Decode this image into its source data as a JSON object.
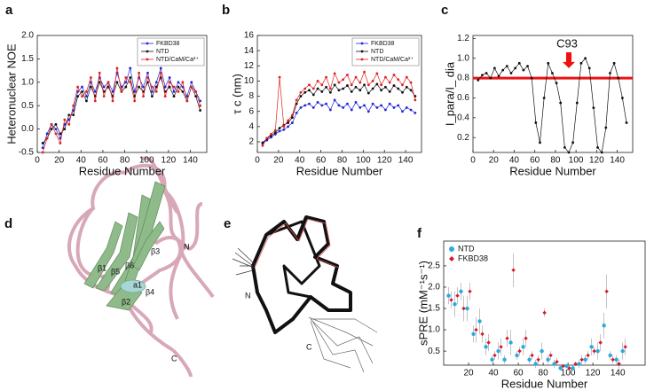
{
  "chart_data": [
    {
      "type": "line",
      "panel": "a",
      "xlabel": "Residue Number",
      "ylabel": "Heteronuclear NOE",
      "xlim": [
        0,
        155
      ],
      "xticks": [
        0,
        20,
        40,
        60,
        80,
        100,
        120,
        140
      ],
      "ylim": [
        -0.5,
        2.0
      ],
      "yticks": [
        -0.5,
        {
          "value": 0,
          "label": "0.0"
        },
        0.5,
        {
          "value": 1,
          "label": "1.0"
        },
        1.5,
        {
          "value": 2,
          "label": "2.0"
        }
      ],
      "legend": "upper right",
      "x": [
        5,
        9,
        13,
        17,
        21,
        25,
        29,
        33,
        37,
        41,
        45,
        49,
        53,
        57,
        61,
        65,
        69,
        73,
        77,
        81,
        85,
        89,
        93,
        97,
        101,
        105,
        109,
        113,
        117,
        121,
        125,
        129,
        133,
        137,
        141,
        145,
        149
      ],
      "series": [
        {
          "name": "FKBD38",
          "color": "#2424d8",
          "values": [
            -0.4,
            -0.1,
            0.1,
            0.0,
            -0.2,
            0.1,
            0.2,
            0.4,
            0.8,
            0.9,
            0.7,
            1.0,
            0.8,
            1.1,
            0.9,
            1.0,
            0.8,
            1.2,
            0.9,
            1.0,
            1.3,
            0.8,
            1.1,
            0.9,
            1.2,
            0.8,
            1.0,
            1.3,
            0.9,
            1.1,
            0.8,
            1.0,
            0.9,
            0.7,
            1.0,
            0.8,
            0.6
          ]
        },
        {
          "name": "NTD",
          "color": "#111111",
          "values": [
            -0.3,
            -0.2,
            0.0,
            0.1,
            -0.1,
            0.0,
            0.3,
            0.3,
            0.7,
            0.8,
            0.6,
            0.9,
            0.7,
            1.0,
            0.8,
            0.9,
            0.7,
            1.0,
            0.8,
            0.9,
            1.1,
            0.7,
            0.9,
            0.8,
            1.0,
            0.7,
            0.9,
            1.1,
            0.8,
            0.9,
            0.7,
            0.9,
            0.8,
            0.6,
            0.9,
            0.7,
            0.4
          ]
        },
        {
          "name": "NTD/CaM/Ca²⁺",
          "color": "#e02020",
          "values": [
            -0.5,
            -0.2,
            0.1,
            -0.1,
            -0.3,
            0.2,
            0.1,
            0.5,
            0.9,
            0.7,
            0.8,
            1.1,
            0.6,
            1.2,
            0.7,
            1.0,
            0.6,
            1.3,
            0.8,
            1.1,
            1.0,
            0.6,
            1.2,
            0.7,
            1.1,
            0.9,
            0.8,
            1.2,
            0.7,
            1.0,
            0.9,
            0.8,
            1.0,
            0.6,
            0.9,
            0.8,
            0.5
          ]
        }
      ]
    },
    {
      "type": "line",
      "panel": "b",
      "xlabel": "Residue Number",
      "ylabel": "τ c (nm)",
      "xlim": [
        0,
        155
      ],
      "xticks": [
        0,
        20,
        40,
        60,
        80,
        100,
        120,
        140
      ],
      "ylim": [
        0.6,
        16
      ],
      "yticks": [
        2,
        4,
        6,
        8,
        10,
        12,
        14,
        16
      ],
      "legend": "upper right",
      "x": [
        5,
        9,
        13,
        17,
        21,
        25,
        29,
        33,
        37,
        41,
        45,
        49,
        53,
        57,
        61,
        65,
        69,
        73,
        77,
        81,
        85,
        89,
        93,
        97,
        101,
        105,
        109,
        113,
        117,
        121,
        125,
        129,
        133,
        137,
        141,
        145,
        149
      ],
      "series": [
        {
          "name": "FKBD38",
          "color": "#2424d8",
          "values": [
            1.8,
            2.2,
            2.6,
            3.0,
            3.4,
            3.6,
            4.0,
            4.5,
            5.8,
            6.5,
            6.8,
            7.0,
            6.5,
            7.2,
            6.8,
            7.0,
            6.2,
            7.5,
            6.8,
            6.5,
            7.0,
            6.2,
            7.2,
            6.5,
            6.8,
            6.0,
            7.0,
            6.5,
            6.8,
            6.2,
            7.0,
            6.5,
            6.8,
            6.0,
            6.5,
            6.2,
            5.8
          ]
        },
        {
          "name": "NTD",
          "color": "#111111",
          "values": [
            1.9,
            2.4,
            2.8,
            3.2,
            3.8,
            4.2,
            4.5,
            5.2,
            7.0,
            8.0,
            8.5,
            8.8,
            8.2,
            9.0,
            8.6,
            9.2,
            8.5,
            9.5,
            8.8,
            9.0,
            9.4,
            8.6,
            9.2,
            8.8,
            9.5,
            8.4,
            9.0,
            9.6,
            8.8,
            9.2,
            8.6,
            9.4,
            9.0,
            8.5,
            9.2,
            8.8,
            8.0
          ]
        },
        {
          "name": "NTD/CaM/Ca²⁺",
          "color": "#e02020",
          "values": [
            1.5,
            2.5,
            3.0,
            3.5,
            10.5,
            4.0,
            4.8,
            5.5,
            7.5,
            8.5,
            9.0,
            9.5,
            9.0,
            10.0,
            9.5,
            10.5,
            9.0,
            11.0,
            9.8,
            10.2,
            10.8,
            9.5,
            10.5,
            9.8,
            11.2,
            9.5,
            10.0,
            11.0,
            9.5,
            10.5,
            9.8,
            10.8,
            10.2,
            9.5,
            10.5,
            9.8,
            7.5
          ]
        }
      ]
    },
    {
      "type": "line",
      "panel": "c",
      "xlabel": "Residue Number",
      "ylabel": "I_para/I_ dia",
      "xlim": [
        0,
        155
      ],
      "xticks": [
        0,
        20,
        40,
        60,
        80,
        100,
        120,
        140
      ],
      "ylim": [
        0.05,
        1.23
      ],
      "yticks": [
        0.2,
        0.4,
        0.6,
        0.8,
        {
          "value": 1,
          "label": "1.0"
        },
        1.2
      ],
      "reference_line": {
        "value": 0.8,
        "color": "#ee1111"
      },
      "annotation": {
        "text": "C93",
        "x": 93,
        "color": "#ee1111"
      },
      "x": [
        5,
        9,
        13,
        17,
        21,
        25,
        29,
        33,
        37,
        41,
        45,
        49,
        53,
        57,
        61,
        65,
        69,
        73,
        77,
        81,
        85,
        89,
        93,
        97,
        101,
        105,
        109,
        113,
        117,
        121,
        125,
        129,
        133,
        137,
        141,
        145,
        149
      ],
      "series": [
        {
          "color": "#111111",
          "values": [
            0.78,
            0.83,
            0.85,
            0.8,
            0.9,
            0.82,
            0.88,
            0.92,
            0.85,
            0.9,
            0.95,
            0.88,
            0.92,
            0.8,
            0.35,
            0.15,
            0.6,
            0.95,
            0.85,
            0.75,
            0.55,
            0.1,
            0.05,
            0.15,
            0.55,
            0.95,
            1.0,
            0.9,
            0.5,
            0.1,
            0.05,
            0.3,
            0.85,
            0.95,
            0.8,
            0.6,
            0.35
          ]
        }
      ]
    },
    {
      "type": "scatter",
      "panel": "f",
      "xlabel": "Residue Number",
      "ylabel": "sPRE (mM⁻¹s⁻¹)",
      "xlim": [
        0,
        162
      ],
      "xticks": [
        20,
        40,
        60,
        80,
        100,
        120,
        140
      ],
      "ylim": [
        0.17,
        3.08
      ],
      "yticks": [
        0.5,
        {
          "value": 1,
          "label": "1.0"
        },
        1.5,
        {
          "value": 2,
          "label": "2.0"
        },
        2.5
      ],
      "legend": "upper left",
      "x": [
        5,
        10,
        15,
        20,
        25,
        30,
        35,
        40,
        45,
        50,
        55,
        60,
        65,
        70,
        75,
        80,
        85,
        90,
        95,
        100,
        105,
        110,
        115,
        120,
        125,
        130,
        135,
        140,
        145
      ],
      "series": [
        {
          "name": "NTD",
          "color": "#29abe2",
          "marker": "circle",
          "values": [
            1.8,
            1.6,
            1.9,
            1.5,
            0.9,
            1.2,
            0.6,
            0.3,
            0.5,
            0.3,
            0.7,
            0.4,
            0.6,
            0.3,
            0.2,
            0.5,
            0.3,
            0.2,
            0.1,
            0.15,
            0.1,
            0.2,
            0.3,
            0.6,
            0.5,
            1.1,
            0.4,
            0.3,
            0.5
          ],
          "errors": [
            0.2,
            0.3,
            0.2,
            0.3,
            0.2,
            0.3,
            0.2,
            0.1,
            0.2,
            0.1,
            0.3,
            0.1,
            0.2,
            0.1,
            0.1,
            0.2,
            0.1,
            0.1,
            0.05,
            0.05,
            0.05,
            0.1,
            0.1,
            0.2,
            0.2,
            0.3,
            0.1,
            0.1,
            0.2
          ]
        },
        {
          "name": "FKBD38",
          "color": "#d7192c",
          "marker": "diamond",
          "values": [
            1.7,
            1.8,
            1.5,
            1.9,
            1.0,
            0.9,
            0.7,
            0.4,
            0.6,
            0.8,
            2.4,
            0.5,
            0.8,
            0.4,
            0.3,
            1.4,
            0.4,
            0.25,
            0.15,
            0.1,
            0.2,
            0.3,
            0.4,
            0.5,
            0.7,
            1.9,
            0.3,
            0.2,
            0.6
          ],
          "errors": [
            0.2,
            0.2,
            0.3,
            0.2,
            0.3,
            0.2,
            0.2,
            0.1,
            0.2,
            0.2,
            0.4,
            0.1,
            0.2,
            0.1,
            0.1,
            0.1,
            0.1,
            0.1,
            0.05,
            0.05,
            0.05,
            0.1,
            0.1,
            0.1,
            0.2,
            0.4,
            0.1,
            0.1,
            0.2
          ]
        }
      ]
    }
  ],
  "structures": [
    {
      "panel": "d",
      "labels": [
        "N",
        "C",
        "β1",
        "β5",
        "β6",
        "β3",
        "a1",
        "β4",
        "β2"
      ]
    },
    {
      "panel": "e",
      "labels": [
        "N",
        "C"
      ]
    }
  ]
}
